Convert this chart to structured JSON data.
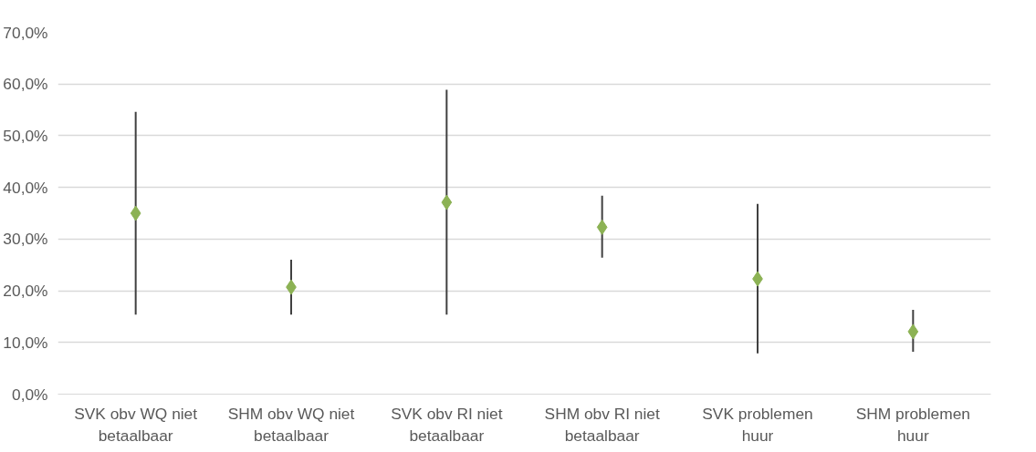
{
  "chart_data": {
    "type": "scatter",
    "categories": [
      "SVK obv WQ niet\nbetaalbaar",
      "SHM obv WQ niet\nbetaalbaar",
      "SVK obv RI niet\nbetaalbaar",
      "SHM obv RI niet\nbetaalbaar",
      "SVK problemen\nhuur",
      "SHM problemen\nhuur"
    ],
    "series": [
      {
        "color": "#8cb254",
        "values": [
          35.0,
          20.7,
          37.1,
          32.3,
          22.3,
          12.1
        ],
        "errors": [
          [
            15.4,
            54.6
          ],
          [
            15.4,
            26.0
          ],
          [
            15.4,
            58.9
          ],
          [
            26.4,
            38.4
          ],
          [
            7.9,
            36.8
          ],
          [
            8.2,
            16.3
          ]
        ]
      }
    ],
    "ylim": [
      0,
      70
    ],
    "yticks": [
      {
        "value": 0,
        "label": "0,0%"
      },
      {
        "value": 10,
        "label": "10,0%"
      },
      {
        "value": 20,
        "label": "20,0%"
      },
      {
        "value": 30,
        "label": "30,0%"
      },
      {
        "value": 40,
        "label": "40,0%"
      },
      {
        "value": 50,
        "label": "50,0%"
      },
      {
        "value": 60,
        "label": "60,0%"
      },
      {
        "value": 70,
        "label": "70,0%"
      }
    ],
    "grid": "y",
    "marker": "diamond"
  }
}
